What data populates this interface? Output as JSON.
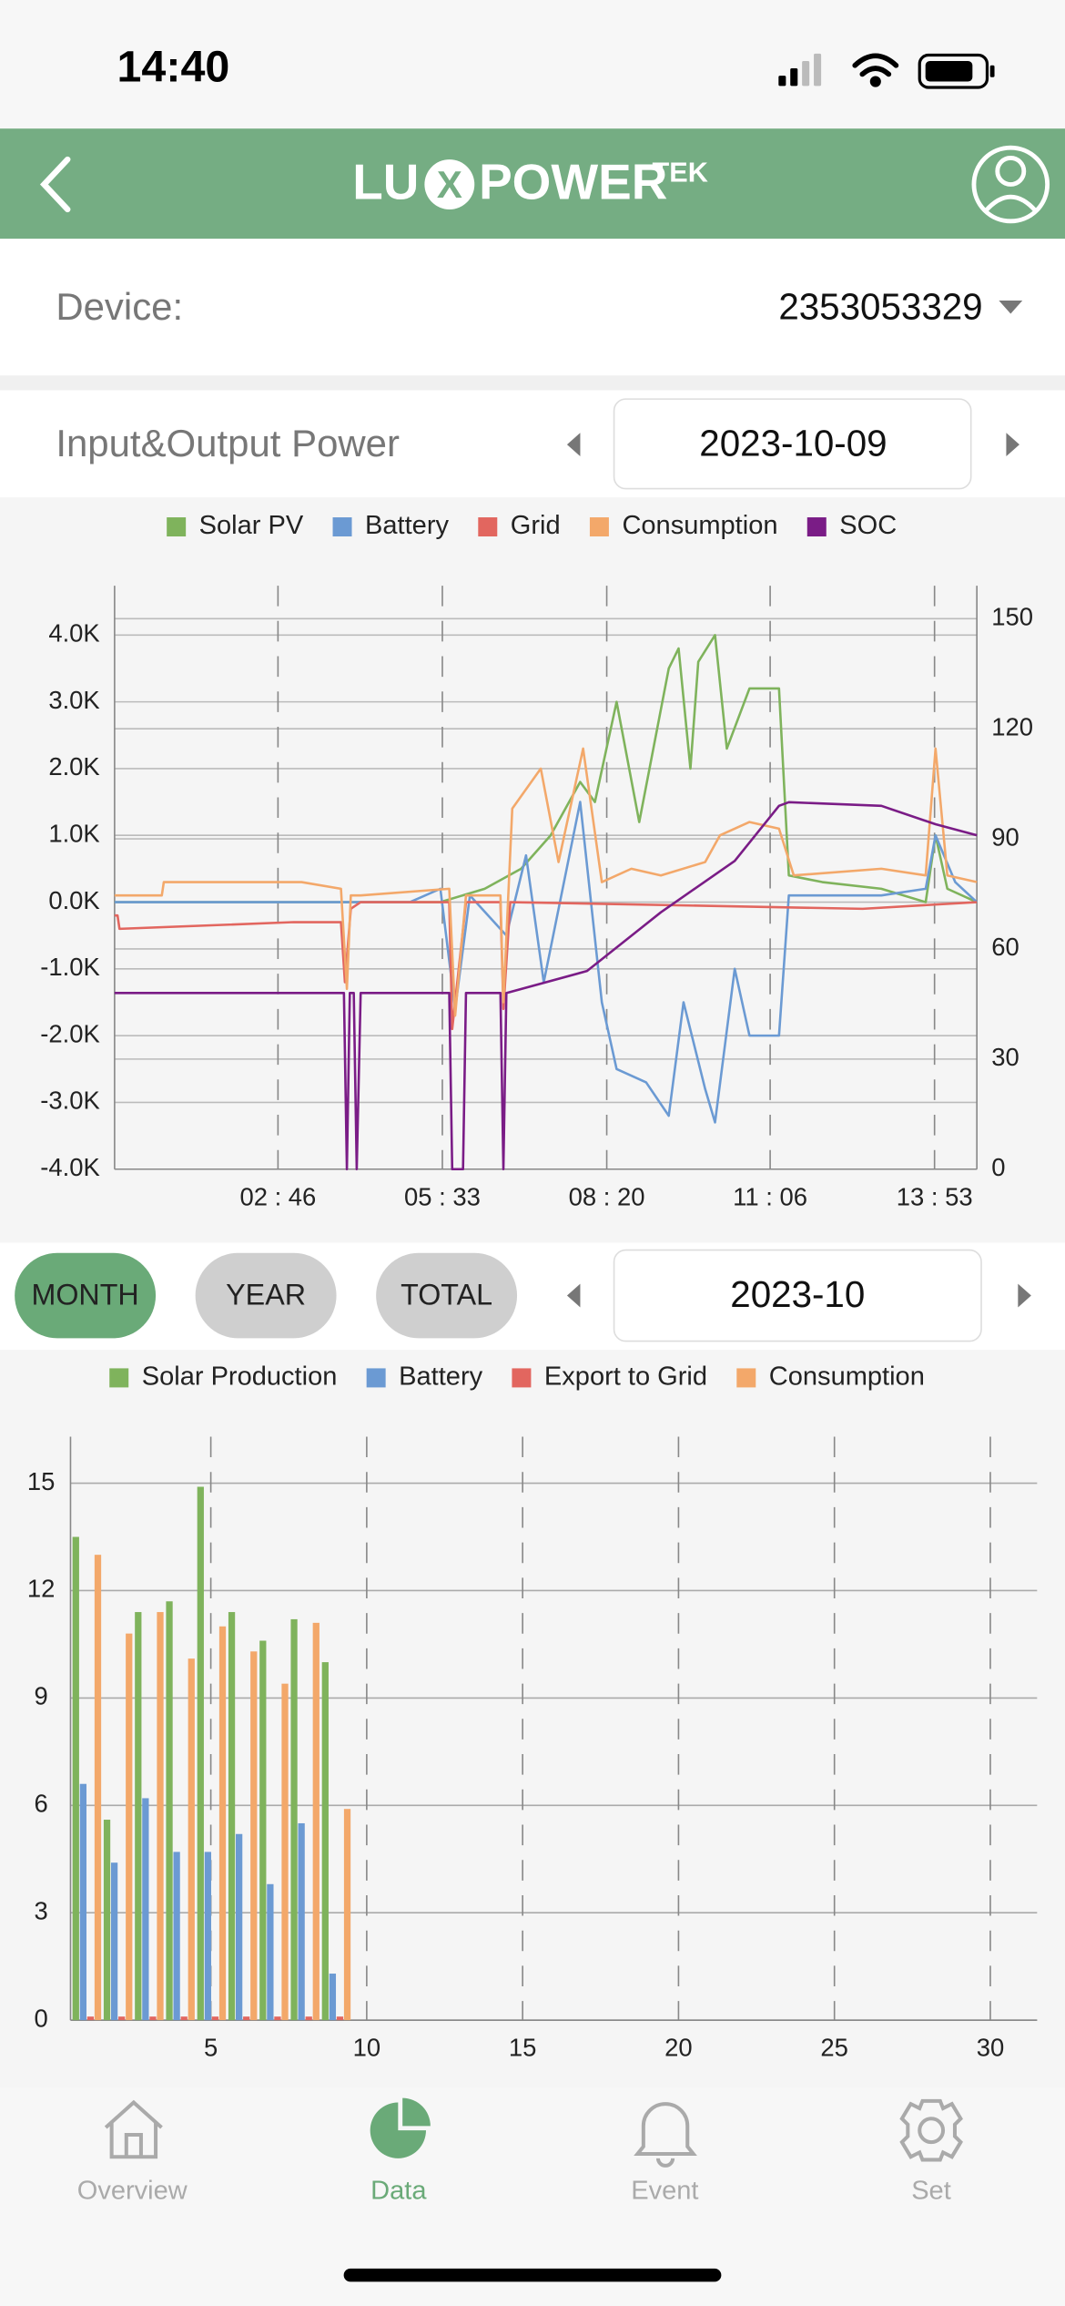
{
  "status_bar": {
    "time": "14:40"
  },
  "header": {
    "logo": [
      "LU",
      "X",
      "POWER"
    ],
    "logo_suffix": "TEK"
  },
  "device": {
    "label": "Device:",
    "value": "2353053329"
  },
  "power_section": {
    "title": "Input&Output Power",
    "date": "2023-10-09"
  },
  "period_tabs": {
    "buttons": [
      "MONTH",
      "YEAR",
      "TOTAL"
    ],
    "active": 0,
    "date": "2023-10"
  },
  "chart_data": [
    {
      "type": "line",
      "xlim": [
        0,
        876
      ],
      "xticks": [
        {
          "value": 166,
          "label": "02 : 46"
        },
        {
          "value": 333,
          "label": "05 : 33"
        },
        {
          "value": 500,
          "label": "08 : 20"
        },
        {
          "value": 666,
          "label": "11 : 06"
        },
        {
          "value": 833,
          "label": "13 : 53"
        }
      ],
      "ylim": [
        -4000,
        4740
      ],
      "yticks": [
        {
          "value": -4000,
          "label": "-4.0K"
        },
        {
          "value": -3000,
          "label": "-3.0K"
        },
        {
          "value": -2000,
          "label": "-2.0K"
        },
        {
          "value": -1000,
          "label": "-1.0K"
        },
        {
          "value": 0,
          "label": "0.0K"
        },
        {
          "value": 1000,
          "label": "1.0K"
        },
        {
          "value": 2000,
          "label": "2.0K"
        },
        {
          "value": 3000,
          "label": "3.0K"
        },
        {
          "value": 4000,
          "label": "4.0K"
        }
      ],
      "y2lim": [
        0,
        159
      ],
      "y2ticks": [
        0,
        30,
        60,
        90,
        120,
        150
      ],
      "grid": true,
      "series": [
        {
          "name": "Solar PV",
          "color": "#7fb35c",
          "x": [
            0,
            300,
            331,
            376,
            413,
            443,
            473,
            488,
            510,
            533,
            563,
            573,
            585,
            593,
            610,
            622,
            645,
            675,
            685,
            719,
            779,
            824,
            834,
            846,
            876
          ],
          "values": [
            0,
            0,
            0,
            200,
            500,
            1000,
            1800,
            1500,
            3000,
            1200,
            3500,
            3800,
            2000,
            3600,
            4000,
            2300,
            3200,
            3200,
            400,
            300,
            200,
            0,
            1000,
            200,
            0
          ]
        },
        {
          "name": "Battery",
          "color": "#6b9ad3",
          "x": [
            0,
            300,
            331,
            346,
            361,
            398,
            418,
            436,
            473,
            495,
            510,
            540,
            563,
            578,
            600,
            610,
            630,
            645,
            675,
            685,
            779,
            824,
            834,
            854,
            876
          ],
          "values": [
            0,
            0,
            200,
            -1600,
            100,
            -500,
            700,
            -1200,
            1500,
            -1500,
            -2500,
            -2700,
            -3200,
            -1500,
            -2800,
            -3300,
            -1000,
            -2000,
            -2000,
            100,
            100,
            200,
            1000,
            300,
            0
          ]
        },
        {
          "name": "Grid",
          "color": "#e2665f",
          "x": [
            0,
            3,
            5,
            182,
            230,
            234,
            240,
            250,
            340,
            343,
            357,
            392,
            395,
            402,
            760,
            876
          ],
          "values": [
            -200,
            -200,
            -400,
            -300,
            -300,
            -1200,
            -100,
            0,
            0,
            -1900,
            0,
            0,
            -1600,
            0,
            -100,
            0
          ]
        },
        {
          "name": "Consumption",
          "color": "#f3a86a",
          "x": [
            0,
            48,
            50,
            190,
            230,
            236,
            240,
            250,
            340,
            346,
            357,
            392,
            395,
            404,
            433,
            451,
            476,
            495,
            525,
            555,
            600,
            615,
            645,
            675,
            690,
            779,
            824,
            834,
            846,
            876
          ],
          "values": [
            100,
            100,
            300,
            300,
            200,
            -1300,
            100,
            100,
            200,
            -1700,
            100,
            100,
            -1500,
            1400,
            2000,
            600,
            2300,
            300,
            500,
            400,
            600,
            1000,
            1200,
            1100,
            400,
            500,
            400,
            2300,
            400,
            300
          ]
        },
        {
          "name": "SOC",
          "color": "#7a1c86",
          "axis": "y2",
          "x": [
            0,
            233,
            236,
            239,
            243,
            246,
            250,
            340,
            343,
            354,
            357,
            392,
            395,
            398,
            480,
            555,
            630,
            675,
            685,
            779,
            834,
            876
          ],
          "values": [
            48,
            48,
            0,
            48,
            48,
            0,
            48,
            48,
            0,
            0,
            48,
            48,
            0,
            48,
            54,
            70,
            84,
            99,
            100,
            99,
            94,
            91
          ]
        }
      ]
    },
    {
      "type": "bar",
      "xlim": [
        0.5,
        31.5
      ],
      "xticks": [
        5,
        10,
        15,
        20,
        25,
        30
      ],
      "ylim": [
        0,
        16.3
      ],
      "yticks": [
        0,
        3,
        6,
        9,
        12,
        15
      ],
      "grid": true,
      "x": [
        1,
        2,
        3,
        4,
        5,
        6,
        7,
        8,
        9
      ],
      "series": [
        {
          "name": "Solar Production",
          "color": "#7fb35c",
          "values": [
            13.5,
            5.6,
            11.4,
            11.7,
            14.9,
            11.4,
            10.6,
            11.2,
            10.0
          ]
        },
        {
          "name": "Battery",
          "color": "#6b9ad3",
          "values": [
            6.6,
            4.4,
            6.2,
            4.7,
            4.7,
            5.2,
            3.8,
            5.5,
            1.3
          ]
        },
        {
          "name": "Export to Grid",
          "color": "#e2665f",
          "values": [
            0.1,
            0.1,
            0.1,
            0.1,
            0.1,
            0.1,
            0.1,
            0.1,
            0.1
          ]
        },
        {
          "name": "Consumption",
          "color": "#f3a86a",
          "values": [
            13.0,
            10.8,
            11.4,
            10.1,
            11.0,
            10.3,
            9.4,
            11.1,
            5.9
          ]
        }
      ]
    }
  ],
  "tab_bar": {
    "items": [
      "Overview",
      "Data",
      "Event",
      "Set"
    ],
    "active": 1
  }
}
